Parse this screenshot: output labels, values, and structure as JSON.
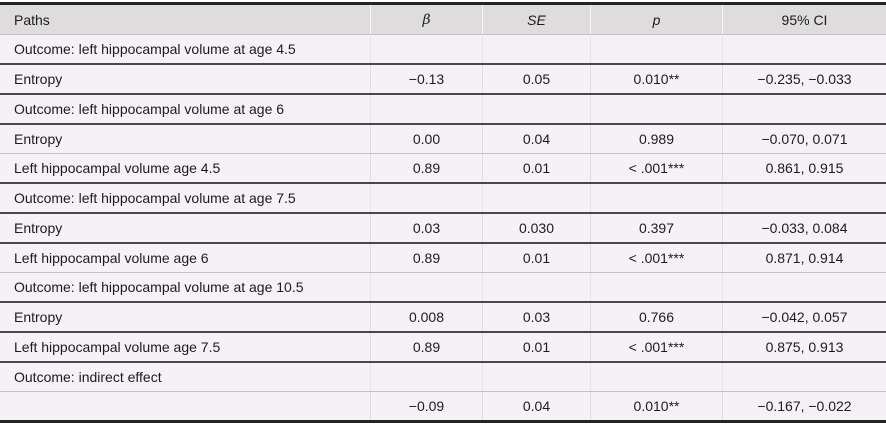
{
  "table": {
    "columns": {
      "paths": "Paths",
      "beta": "β",
      "se": "SE",
      "p": "p",
      "ci": "95% CI"
    },
    "rows": [
      {
        "type": "section",
        "divider_top": "thin",
        "label": "Outcome: left hippocampal volume at age 4.5",
        "beta": "",
        "se": "",
        "p": "",
        "ci": ""
      },
      {
        "type": "data",
        "divider_top": "thick",
        "label": "Entropy",
        "beta": "−0.13",
        "se": "0.05",
        "p": "0.010**",
        "ci": "−0.235, −0.033"
      },
      {
        "type": "section",
        "divider_top": "thick",
        "label": "Outcome: left hippocampal volume at age 6",
        "beta": "",
        "se": "",
        "p": "",
        "ci": ""
      },
      {
        "type": "data",
        "divider_top": "thick",
        "label": "Entropy",
        "beta": "0.00",
        "se": "0.04",
        "p": "0.989",
        "ci": "−0.070, 0.071"
      },
      {
        "type": "data",
        "divider_top": "thin",
        "label": "Left hippocampal volume age 4.5",
        "beta": "0.89",
        "se": "0.01",
        "p": "< .001***",
        "ci": "0.861, 0.915"
      },
      {
        "type": "section",
        "divider_top": "thick",
        "label": "Outcome: left hippocampal volume at age 7.5",
        "beta": "",
        "se": "",
        "p": "",
        "ci": ""
      },
      {
        "type": "data",
        "divider_top": "thick",
        "label": "Entropy",
        "beta": "0.03",
        "se": "0.030",
        "p": "0.397",
        "ci": "−0.033, 0.084"
      },
      {
        "type": "data",
        "divider_top": "thick",
        "label": "Left hippocampal volume age 6",
        "beta": "0.89",
        "se": "0.01",
        "p": "< .001***",
        "ci": "0.871, 0.914"
      },
      {
        "type": "section",
        "divider_top": "thin",
        "label": "Outcome: left hippocampal volume at age 10.5",
        "beta": "",
        "se": "",
        "p": "",
        "ci": ""
      },
      {
        "type": "data",
        "divider_top": "thick",
        "label": "Entropy",
        "beta": "0.008",
        "se": "0.03",
        "p": "0.766",
        "ci": "−0.042, 0.057"
      },
      {
        "type": "data",
        "divider_top": "thick",
        "label": "Left hippocampal volume age 7.5",
        "beta": "0.89",
        "se": "0.01",
        "p": "< .001***",
        "ci": "0.875, 0.913"
      },
      {
        "type": "section",
        "divider_top": "thick",
        "label": "Outcome: indirect effect",
        "beta": "",
        "se": "",
        "p": "",
        "ci": ""
      },
      {
        "type": "data",
        "divider_top": "thin",
        "label": "",
        "beta": "−0.09",
        "se": "0.04",
        "p": "0.010**",
        "ci": "−0.167, −0.022"
      }
    ]
  },
  "colors": {
    "header_bg": "#dfdcde",
    "body_row_bg": "#f6f1f6",
    "rule_heavy": "#242225",
    "rule_medium": "#4a464b",
    "rule_light": "#c7c2c7",
    "text": "#1c1c1c"
  }
}
